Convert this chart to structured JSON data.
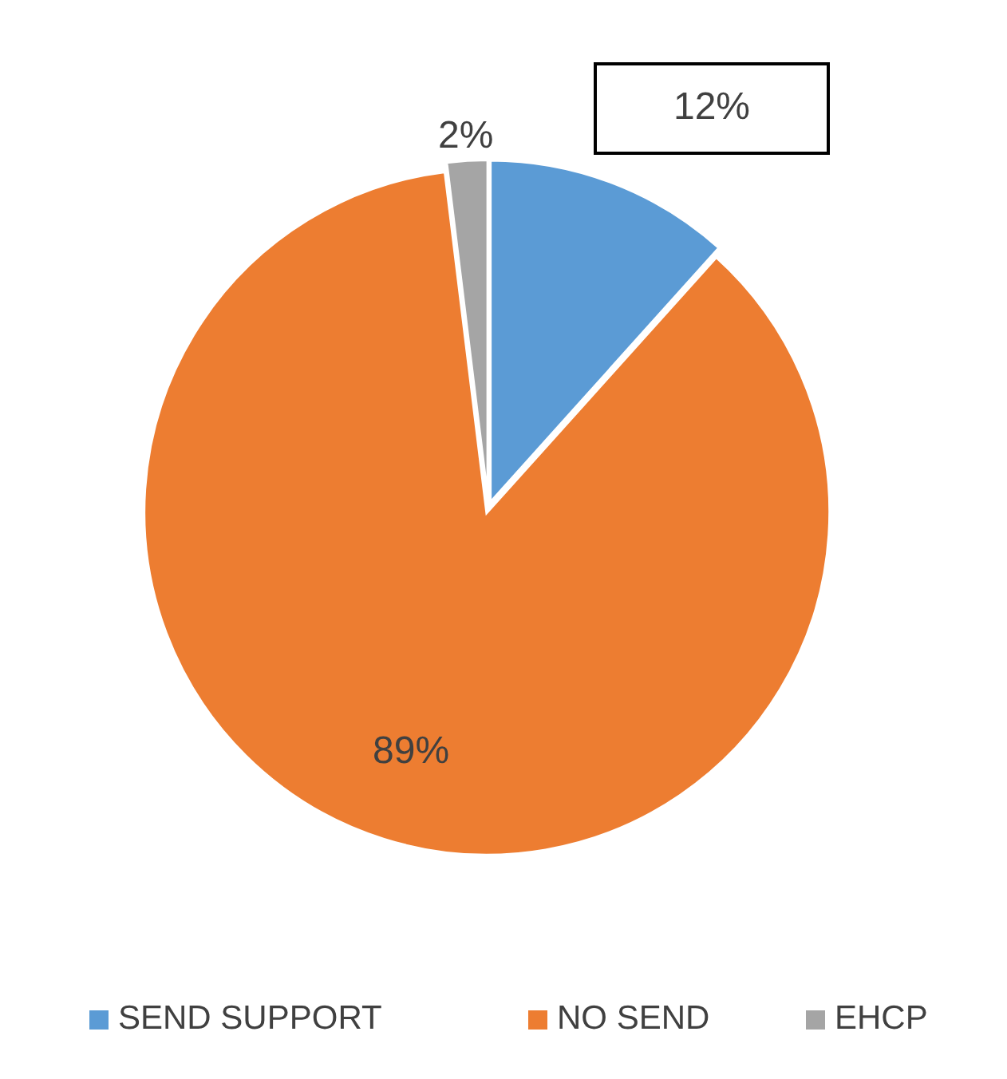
{
  "chart_data": {
    "type": "pie",
    "categories": [
      "SEND SUPPORT",
      "NO SEND",
      "EHCP"
    ],
    "values": [
      12,
      89,
      2
    ],
    "colors": [
      "#5b9bd5",
      "#ed7d31",
      "#a5a5a5"
    ],
    "value_labels": [
      "12%",
      "89%",
      "2%"
    ],
    "legend": "bottom"
  }
}
